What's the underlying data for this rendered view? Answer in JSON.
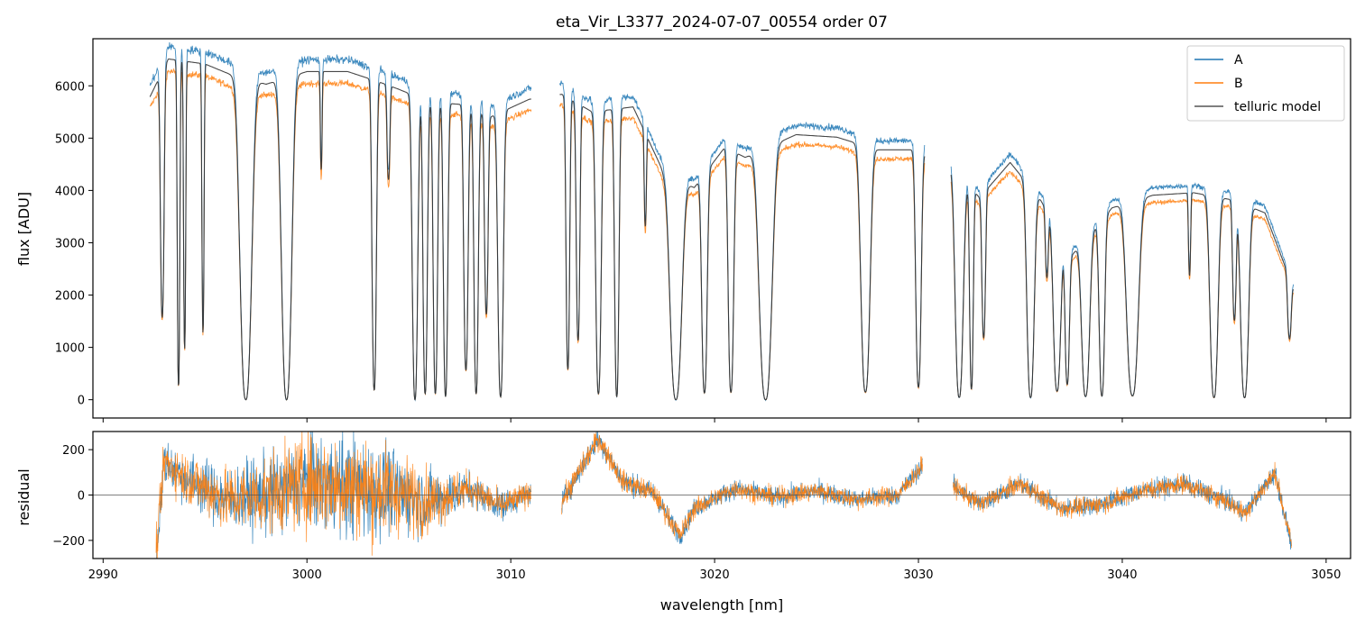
{
  "chart_data": [
    {
      "type": "line",
      "title": "eta_Vir_L3377_2024-07-07_00554  order 07",
      "xlabel": "",
      "ylabel": "flux [ADU]",
      "xlim": [
        2989.5,
        3051.2
      ],
      "ylim": [
        -350,
        6900
      ],
      "yticks": [
        "0",
        "1000",
        "2000",
        "3000",
        "4000",
        "5000",
        "6000"
      ],
      "xticks": [
        2990,
        3000,
        3010,
        3020,
        3030,
        3040,
        3050
      ],
      "legend": {
        "placement": "top-right",
        "entries": [
          "A",
          "B",
          "telluric model"
        ]
      },
      "series": [
        {
          "name": "A",
          "color": "#1f77b4",
          "scale": 1.0,
          "noise": 70
        },
        {
          "name": "B",
          "color": "#ff7f0e",
          "scale": 0.93,
          "noise": 60
        },
        {
          "name": "telluric model",
          "color": "#333333",
          "scale": 0.965,
          "noise": 0
        }
      ],
      "segments": [
        [
          2992.3,
          3011.0
        ],
        [
          3012.4,
          3030.3
        ],
        [
          3031.6,
          3048.4
        ]
      ],
      "continuum_knots": [
        [
          2992.3,
          6000
        ],
        [
          2993.2,
          6750
        ],
        [
          2995.0,
          6650
        ],
        [
          2996.5,
          6400
        ],
        [
          2998.0,
          6250
        ],
        [
          3000.0,
          6500
        ],
        [
          3002.0,
          6500
        ],
        [
          3003.5,
          6300
        ],
        [
          3004.5,
          6150
        ],
        [
          3006.0,
          5900
        ],
        [
          3007.5,
          5850
        ],
        [
          3009.0,
          5600
        ],
        [
          3010.9,
          5950
        ],
        [
          3012.5,
          6050
        ],
        [
          3014.0,
          5700
        ],
        [
          3016.0,
          5800
        ],
        [
          3017.5,
          4500
        ],
        [
          3019.0,
          4200
        ],
        [
          3020.5,
          5000
        ],
        [
          3021.5,
          4800
        ],
        [
          3024.0,
          5250
        ],
        [
          3026.0,
          5200
        ],
        [
          3028.0,
          4950
        ],
        [
          3030.0,
          4950
        ],
        [
          3031.7,
          4600
        ],
        [
          3033.0,
          4000
        ],
        [
          3034.5,
          4700
        ],
        [
          3036.0,
          3950
        ],
        [
          3037.5,
          2850
        ],
        [
          3039.5,
          3800
        ],
        [
          3041.5,
          4050
        ],
        [
          3043.5,
          4100
        ],
        [
          3045.5,
          3950
        ],
        [
          3047.0,
          3700
        ],
        [
          3048.4,
          2200
        ]
      ],
      "absorption_lines": [
        [
          2992.9,
          0.75,
          0.1
        ],
        [
          2993.7,
          0.96,
          0.07
        ],
        [
          2994.0,
          0.85,
          0.06
        ],
        [
          2994.9,
          0.8,
          0.06
        ],
        [
          2997.0,
          1.0,
          0.32
        ],
        [
          2999.0,
          1.0,
          0.28
        ],
        [
          3000.7,
          0.3,
          0.05
        ],
        [
          3003.3,
          0.97,
          0.12
        ],
        [
          3004.0,
          0.3,
          0.08
        ],
        [
          3005.3,
          1.0,
          0.15
        ],
        [
          3005.8,
          0.98,
          0.12
        ],
        [
          3006.3,
          0.98,
          0.12
        ],
        [
          3006.8,
          0.99,
          0.12
        ],
        [
          3007.8,
          0.9,
          0.12
        ],
        [
          3008.3,
          0.98,
          0.12
        ],
        [
          3008.8,
          0.7,
          0.1
        ],
        [
          3009.5,
          0.99,
          0.15
        ],
        [
          3012.8,
          0.9,
          0.1
        ],
        [
          3013.3,
          0.8,
          0.1
        ],
        [
          3014.3,
          0.98,
          0.15
        ],
        [
          3015.2,
          0.99,
          0.12
        ],
        [
          3016.6,
          0.35,
          0.06
        ],
        [
          3018.1,
          1.0,
          0.32
        ],
        [
          3019.5,
          0.97,
          0.15
        ],
        [
          3020.8,
          0.97,
          0.15
        ],
        [
          3022.5,
          1.0,
          0.35
        ],
        [
          3027.4,
          0.97,
          0.25
        ],
        [
          3030.0,
          0.95,
          0.15
        ],
        [
          3032.0,
          0.99,
          0.22
        ],
        [
          3032.6,
          0.95,
          0.1
        ],
        [
          3033.2,
          0.7,
          0.1
        ],
        [
          3035.5,
          0.99,
          0.2
        ],
        [
          3036.3,
          0.35,
          0.08
        ],
        [
          3036.8,
          0.95,
          0.2
        ],
        [
          3037.3,
          0.9,
          0.12
        ],
        [
          3038.2,
          0.98,
          0.22
        ],
        [
          3039.0,
          0.98,
          0.15
        ],
        [
          3040.5,
          0.98,
          0.32
        ],
        [
          3043.3,
          0.4,
          0.06
        ],
        [
          3044.5,
          0.99,
          0.22
        ],
        [
          3045.5,
          0.6,
          0.1
        ],
        [
          3046.0,
          0.99,
          0.22
        ],
        [
          3048.2,
          0.5,
          0.1
        ]
      ]
    },
    {
      "type": "line",
      "title": "",
      "xlabel": "wavelength [nm]",
      "ylabel": "residual",
      "xlim": [
        2989.5,
        3051.2
      ],
      "ylim": [
        -280,
        280
      ],
      "yticks": [
        "−200",
        "0",
        "200"
      ],
      "xticks": [
        "2990",
        "3000",
        "3010",
        "3020",
        "3030",
        "3040",
        "3050"
      ],
      "zero_line": 0,
      "series": [
        {
          "name": "A",
          "color": "#1f77b4"
        },
        {
          "name": "B",
          "color": "#ff7f0e"
        }
      ],
      "segments": [
        [
          2992.6,
          3011.0
        ],
        [
          3012.5,
          3030.2
        ],
        [
          3031.7,
          3048.3
        ]
      ],
      "trend_knots": [
        [
          2992.6,
          -260
        ],
        [
          2993.0,
          150
        ],
        [
          2994.0,
          80
        ],
        [
          2996.0,
          -20
        ],
        [
          2998.0,
          0
        ],
        [
          3000.0,
          60
        ],
        [
          3002.0,
          40
        ],
        [
          3004.0,
          20
        ],
        [
          3006.0,
          -30
        ],
        [
          3008.0,
          30
        ],
        [
          3009.5,
          -50
        ],
        [
          3011.0,
          10
        ],
        [
          3012.5,
          -30
        ],
        [
          3014.3,
          250
        ],
        [
          3015.5,
          60
        ],
        [
          3017.0,
          10
        ],
        [
          3018.3,
          -180
        ],
        [
          3019.0,
          -60
        ],
        [
          3021.0,
          30
        ],
        [
          3023.0,
          -10
        ],
        [
          3025.0,
          20
        ],
        [
          3027.0,
          -20
        ],
        [
          3029.0,
          0
        ],
        [
          3030.2,
          130
        ],
        [
          3031.7,
          40
        ],
        [
          3033.0,
          -40
        ],
        [
          3035.0,
          50
        ],
        [
          3037.0,
          -60
        ],
        [
          3039.0,
          -40
        ],
        [
          3041.0,
          20
        ],
        [
          3043.0,
          50
        ],
        [
          3045.0,
          -20
        ],
        [
          3046.0,
          -80
        ],
        [
          3047.5,
          100
        ],
        [
          3048.3,
          -220
        ]
      ],
      "noise_knots": [
        [
          2992.6,
          90
        ],
        [
          2996.0,
          130
        ],
        [
          3000.0,
          200
        ],
        [
          3003.0,
          210
        ],
        [
          3005.0,
          160
        ],
        [
          3008.0,
          70
        ],
        [
          3011.0,
          50
        ],
        [
          3012.5,
          50
        ],
        [
          3020.0,
          40
        ],
        [
          3030.2,
          40
        ],
        [
          3031.7,
          40
        ],
        [
          3040.0,
          40
        ],
        [
          3048.3,
          40
        ]
      ]
    }
  ]
}
